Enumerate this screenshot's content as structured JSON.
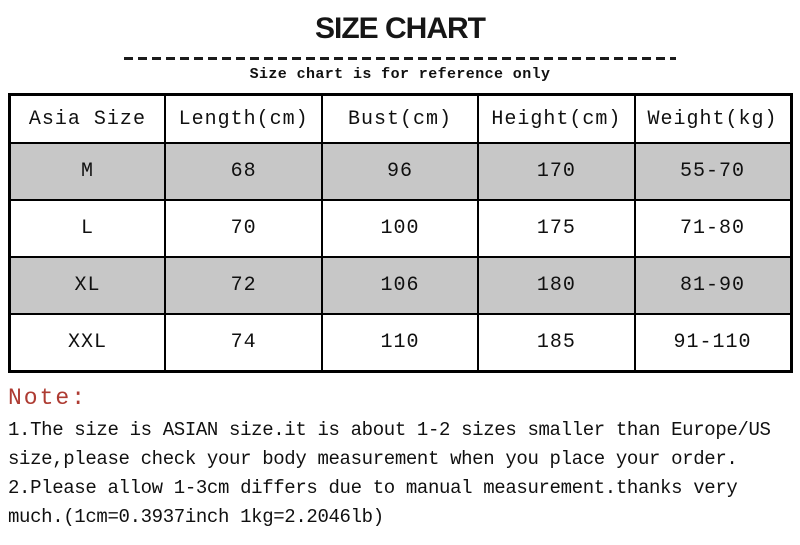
{
  "chart_data": {
    "type": "table",
    "title": "SIZE CHART",
    "subtitle": "Size chart is for reference only",
    "columns": [
      "Asia Size",
      "Length(cm)",
      "Bust(cm)",
      "Height(cm)",
      "Weight(kg)"
    ],
    "rows": [
      [
        "M",
        "68",
        "96",
        "170",
        "55-70"
      ],
      [
        "L",
        "70",
        "100",
        "175",
        "71-80"
      ],
      [
        "XL",
        "72",
        "106",
        "180",
        "81-90"
      ],
      [
        "XXL",
        "74",
        "110",
        "185",
        "91-110"
      ]
    ],
    "shaded_row_indexes": [
      0,
      2
    ],
    "layout_hints": "header row white, data rows alternate gray/white, black grid borders"
  },
  "note": {
    "heading": "Note:",
    "lines": [
      "1.The size is ASIAN size.it is about 1-2 sizes smaller than Europe/US",
      "size,please check your body measurement when you place your order.",
      "2.Please allow 1-3cm differs due to manual measurement.thanks very",
      "much.(1cm=0.3937inch 1kg=2.2046lb)"
    ]
  },
  "colors": {
    "row_shade": "#c7c7c7",
    "note_red": "#ae3b32",
    "table_border": "#000000",
    "text": "#111111",
    "background": "#ffffff"
  }
}
